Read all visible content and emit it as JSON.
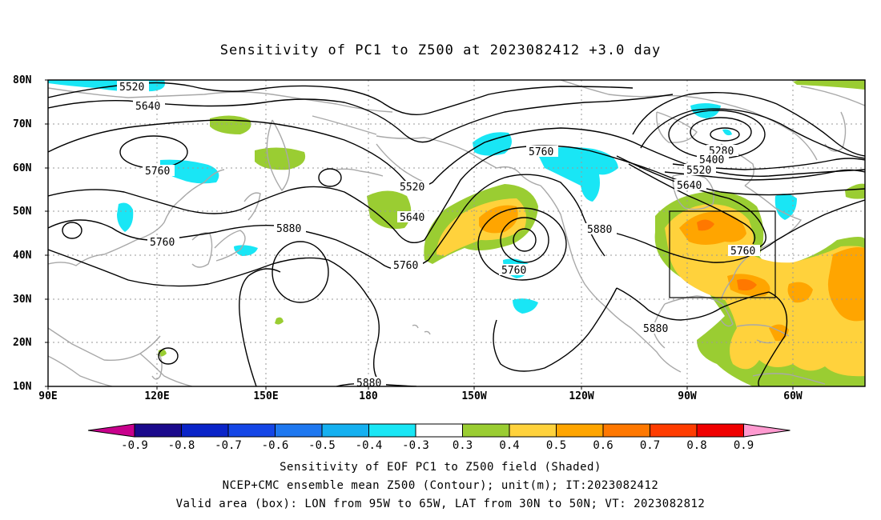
{
  "title": "Sensitivity of PC1 to Z500 at 2023082412 +3.0 day",
  "lat_labels": [
    "80N",
    "70N",
    "60N",
    "50N",
    "40N",
    "30N",
    "20N",
    "10N"
  ],
  "lon_labels": [
    "90E",
    "120E",
    "150E",
    "180",
    "150W",
    "120W",
    "90W",
    "60W"
  ],
  "contour_labels": {
    "c1": "5520",
    "c2": "5640",
    "c3": "5760",
    "c4": "5760",
    "c5": "5880",
    "c6": "5520",
    "c7": "5640",
    "c8": "5760",
    "c9": "5760",
    "c10": "5760",
    "c11": "5880",
    "c12": "5280",
    "c13": "5400",
    "c14": "5520",
    "c15": "5640",
    "c16": "5760",
    "c17": "5880",
    "c18": "5880"
  },
  "colorbar": {
    "labels": [
      "-0.9",
      "-0.8",
      "-0.7",
      "-0.6",
      "-0.5",
      "-0.4",
      "-0.3",
      "0.3",
      "0.4",
      "0.5",
      "0.6",
      "0.7",
      "0.8",
      "0.9"
    ],
    "colors": [
      "#1b0a8c",
      "#0a24c8",
      "#1446e6",
      "#1e78f0",
      "#15b0f0",
      "#19e6f5",
      "#ffffff",
      "#9acd32",
      "#ffd23c",
      "#ffa500",
      "#ff7800",
      "#ff3c00",
      "#f00000"
    ],
    "low_arrow_color": "#c8008c",
    "high_arrow_color": "#ff9ad0"
  },
  "captions": {
    "line1": "Sensitivity of EOF PC1 to Z500 field (Shaded)",
    "line2": "NCEP+CMC ensemble mean Z500 (Contour); unit(m); IT:2023082412",
    "line3": "Valid area (box): LON from 95W to 65W, LAT from 30N to 50N; VT: 2023082812"
  }
}
